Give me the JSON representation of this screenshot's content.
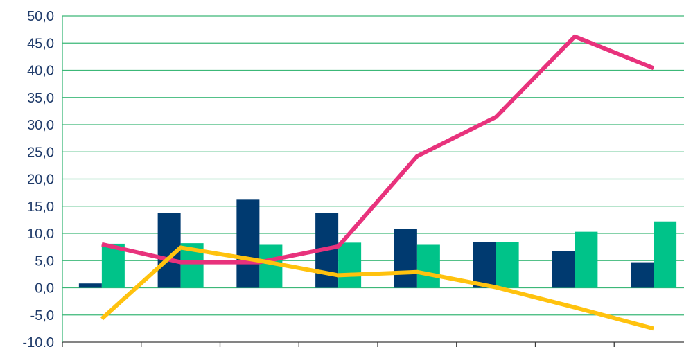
{
  "chart_data": {
    "type": "bar",
    "title": "",
    "xlabel": "",
    "ylabel": "",
    "ylim": [
      -10,
      50
    ],
    "y_ticks": [
      {
        "value": -10,
        "label": "-10,0"
      },
      {
        "value": -5,
        "label": "-5,0"
      },
      {
        "value": 0,
        "label": "0,0"
      },
      {
        "value": 5,
        "label": "5,0"
      },
      {
        "value": 10,
        "label": "10,0"
      },
      {
        "value": 15,
        "label": "15,0"
      },
      {
        "value": 20,
        "label": "20,0"
      },
      {
        "value": 25,
        "label": "25,0"
      },
      {
        "value": 30,
        "label": "30,0"
      },
      {
        "value": 35,
        "label": "35,0"
      },
      {
        "value": 40,
        "label": "40,0"
      },
      {
        "value": 45,
        "label": "45,0"
      },
      {
        "value": 50,
        "label": "50,0"
      }
    ],
    "category_count": 8,
    "grid": true,
    "legend": "none",
    "bar_series": [
      {
        "color": "#003a70",
        "values": [
          0.8,
          13.8,
          16.2,
          13.7,
          10.8,
          8.4,
          6.7,
          4.7
        ]
      },
      {
        "color": "#00c389",
        "values": [
          8.1,
          8.2,
          7.9,
          8.3,
          7.9,
          8.4,
          10.3,
          12.2
        ]
      }
    ],
    "line_series": [
      {
        "color": "#e8327c",
        "values": [
          8.0,
          4.7,
          4.7,
          7.6,
          24.2,
          31.4,
          46.2,
          40.4
        ]
      },
      {
        "color": "#ffc20e",
        "values": [
          -5.7,
          7.4,
          5.0,
          2.3,
          2.9,
          0.1,
          -3.6,
          -7.5
        ]
      }
    ],
    "colors": {
      "grid": "#3cb878",
      "axis": "#3a3a3a",
      "tick_text": "#1f3b6a"
    }
  }
}
